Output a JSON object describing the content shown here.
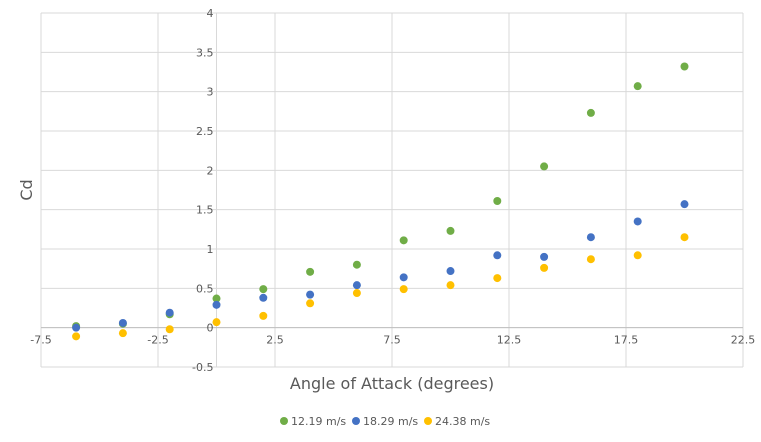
{
  "chart_data": {
    "type": "scatter",
    "title": "",
    "xlabel": "Angle of Attack (degrees)",
    "ylabel": "Cd",
    "xlim": [
      -7.5,
      22.5
    ],
    "ylim": [
      -0.5,
      4
    ],
    "xticks": [
      -7.5,
      -2.5,
      2.5,
      7.5,
      12.5,
      17.5,
      22.5
    ],
    "xtick_labels": [
      "-7.5",
      "-2.5",
      "2.5",
      "7.5",
      "12.5",
      "17.5",
      "22.5"
    ],
    "yticks": [
      -0.5,
      0,
      0.5,
      1,
      1.5,
      2,
      2.5,
      3,
      3.5,
      4
    ],
    "ytick_labels": [
      "-0.5",
      "0",
      "0.5",
      "1",
      "1.5",
      "2",
      "2.5",
      "3",
      "3.5",
      "4"
    ],
    "grid": true,
    "legend_position": "bottom",
    "x": [
      -6,
      -4,
      -2,
      0,
      2,
      4,
      6,
      8,
      10,
      12,
      14,
      16,
      18,
      20
    ],
    "series": [
      {
        "name": "12.19 m/s",
        "color": "#70ad47",
        "values": [
          0.02,
          0.05,
          0.17,
          0.37,
          0.49,
          0.71,
          0.8,
          1.11,
          1.23,
          1.61,
          2.05,
          2.73,
          3.07,
          3.32
        ]
      },
      {
        "name": "18.29 m/s",
        "color": "#4472c4",
        "values": [
          0.0,
          0.06,
          0.19,
          0.29,
          0.38,
          0.42,
          0.54,
          0.64,
          0.72,
          0.92,
          0.9,
          1.15,
          1.35,
          1.57
        ]
      },
      {
        "name": "24.38 m/s",
        "color": "#ffc000",
        "values": [
          -0.11,
          -0.07,
          -0.02,
          0.07,
          0.15,
          0.31,
          0.44,
          0.49,
          0.54,
          0.63,
          0.76,
          0.87,
          0.92,
          1.15
        ]
      }
    ]
  }
}
